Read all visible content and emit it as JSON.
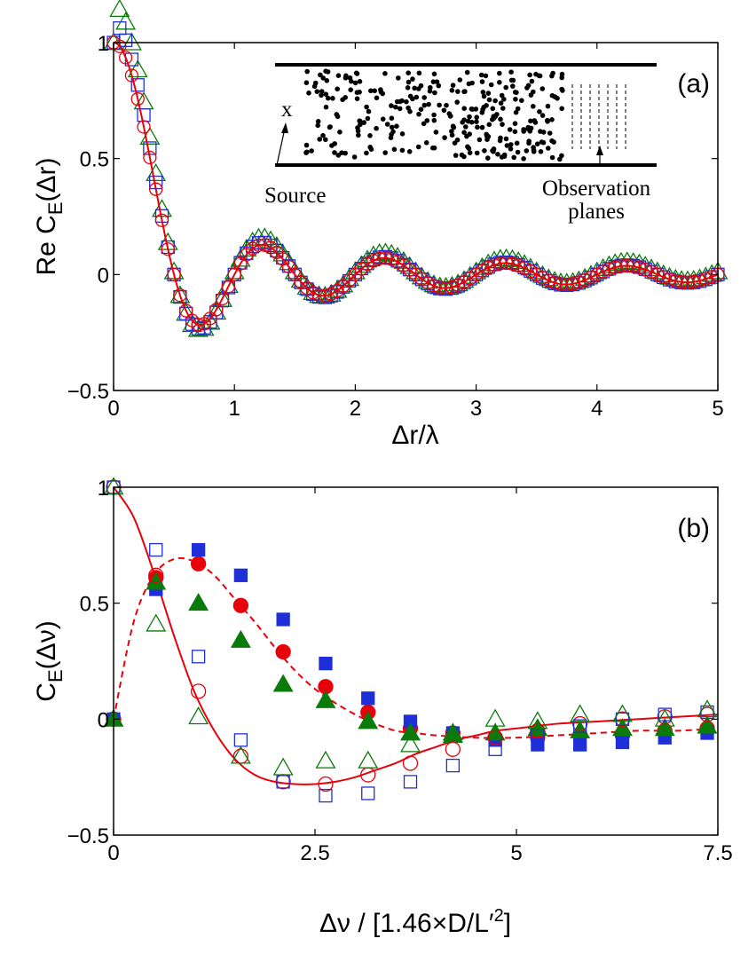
{
  "colors": {
    "red": "#e8000b",
    "blue": "#1f2fd8",
    "green": "#0a7a0a",
    "black": "#000000"
  },
  "chart_data": [
    {
      "type": "line",
      "panel": "(a)",
      "xlabel": "Δr/λ",
      "ylabel": {
        "prefix": "Re C",
        "sub": "E",
        "suffix": "(Δr)"
      },
      "xlim": [
        0,
        5
      ],
      "ylim": [
        -0.5,
        1
      ],
      "xticks": [
        0,
        1,
        2,
        3,
        4,
        5
      ],
      "xtick_labels": [
        "0",
        "1",
        "2",
        "3",
        "4",
        "5"
      ],
      "yticks": [
        -0.5,
        0,
        0.5,
        1
      ],
      "ytick_labels": [
        "−0.5",
        "0",
        "0.5",
        "1"
      ],
      "inset": {
        "source_label": "Source",
        "x_label": "x",
        "observation_label_1": "Observation",
        "observation_label_2": "planes"
      },
      "series": [
        {
          "name": "theory",
          "style": "line",
          "color": "red",
          "function": "sinc"
        },
        {
          "name": "circles",
          "style": "open-circle",
          "color": "red",
          "function": "sinc",
          "x_step": 0.05
        },
        {
          "name": "squares",
          "style": "open-square",
          "color": "blue",
          "function": "sinc-amp",
          "amp": 1.08,
          "shift": 0.0,
          "x_step": 0.05
        },
        {
          "name": "triangles",
          "style": "open-triangle",
          "color": "green",
          "function": "sinc-amp",
          "amp": 1.15,
          "shift": 0.012,
          "x_step": 0.05
        }
      ]
    },
    {
      "type": "scatter",
      "panel": "(b)",
      "xlabel": "Δν / [1.46×D/L′²]",
      "ylabel": {
        "prefix": "C",
        "sub": "E",
        "suffix": "(Δν)"
      },
      "xlim": [
        0,
        7.5
      ],
      "ylim": [
        -0.5,
        1
      ],
      "xticks": [
        0,
        2.5,
        5,
        7.5
      ],
      "xtick_labels": [
        "0",
        "2.5",
        "5",
        "7.5"
      ],
      "yticks": [
        -0.5,
        0,
        0.5,
        1
      ],
      "ytick_labels": [
        "−0.5",
        "0",
        "0.5",
        "1"
      ],
      "x": [
        0,
        0.526,
        1.053,
        1.579,
        2.105,
        2.632,
        3.158,
        3.684,
        4.211,
        4.737,
        5.263,
        5.789,
        6.316,
        6.842,
        7.368
      ],
      "series": [
        {
          "name": "solid-theory",
          "style": "line",
          "color": "red",
          "x": [
            0,
            0.25,
            0.5,
            0.75,
            1.0,
            1.25,
            1.5,
            1.75,
            2.0,
            2.25,
            2.5,
            2.75,
            3.0,
            3.25,
            3.5,
            3.75,
            4.0,
            4.25,
            4.5,
            4.75,
            5.0,
            5.5,
            6.0,
            6.5,
            7.0,
            7.5
          ],
          "values": [
            1.0,
            0.87,
            0.63,
            0.36,
            0.12,
            -0.05,
            -0.17,
            -0.24,
            -0.27,
            -0.28,
            -0.28,
            -0.27,
            -0.25,
            -0.22,
            -0.19,
            -0.15,
            -0.12,
            -0.09,
            -0.07,
            -0.05,
            -0.04,
            -0.02,
            -0.01,
            0.0,
            0.01,
            0.02
          ]
        },
        {
          "name": "dashed-theory",
          "style": "dashed-line",
          "color": "red",
          "x": [
            0,
            0.25,
            0.5,
            0.75,
            1.0,
            1.25,
            1.5,
            1.75,
            2.0,
            2.25,
            2.5,
            2.75,
            3.0,
            3.25,
            3.5,
            3.75,
            4.0,
            4.5,
            5.0,
            5.5,
            6.0,
            6.5,
            7.0,
            7.5
          ],
          "values": [
            0.0,
            0.42,
            0.62,
            0.69,
            0.68,
            0.62,
            0.52,
            0.42,
            0.31,
            0.21,
            0.13,
            0.07,
            0.02,
            -0.02,
            -0.05,
            -0.06,
            -0.07,
            -0.08,
            -0.08,
            -0.07,
            -0.06,
            -0.05,
            -0.05,
            -0.04
          ]
        },
        {
          "name": "filled-circles",
          "style": "filled-circle",
          "color": "red",
          "values": [
            0.0,
            0.61,
            0.67,
            0.49,
            0.29,
            0.14,
            0.03,
            -0.04,
            -0.06,
            -0.08,
            -0.08,
            -0.07,
            -0.07,
            -0.05,
            -0.04
          ]
        },
        {
          "name": "filled-squares",
          "style": "filled-square",
          "color": "blue",
          "values": [
            0.0,
            0.56,
            0.73,
            0.62,
            0.43,
            0.24,
            0.09,
            -0.01,
            -0.06,
            -0.09,
            -0.11,
            -0.11,
            -0.1,
            -0.08,
            -0.06
          ]
        },
        {
          "name": "filled-triangles",
          "style": "filled-triangle",
          "color": "green",
          "values": [
            0.0,
            0.59,
            0.5,
            0.34,
            0.15,
            0.08,
            -0.01,
            -0.06,
            -0.07,
            -0.06,
            -0.04,
            -0.05,
            -0.04,
            -0.04,
            -0.03
          ]
        },
        {
          "name": "open-circles",
          "style": "open-circle",
          "color": "red",
          "values": [
            1.0,
            0.62,
            0.12,
            -0.16,
            -0.27,
            -0.28,
            -0.24,
            -0.19,
            -0.13,
            -0.08,
            -0.05,
            -0.02,
            0.0,
            0.01,
            0.02
          ]
        },
        {
          "name": "open-squares",
          "style": "open-square",
          "color": "blue",
          "values": [
            1.0,
            0.73,
            0.27,
            -0.09,
            -0.27,
            -0.33,
            -0.32,
            -0.27,
            -0.2,
            -0.13,
            -0.07,
            -0.03,
            0.0,
            0.02,
            0.03
          ]
        },
        {
          "name": "open-triangles",
          "style": "open-triangle",
          "color": "green",
          "values": [
            1.0,
            0.41,
            0.01,
            -0.16,
            -0.21,
            -0.18,
            -0.18,
            -0.11,
            -0.06,
            0.0,
            -0.01,
            0.02,
            0.02,
            0.0,
            0.04
          ]
        }
      ]
    }
  ]
}
